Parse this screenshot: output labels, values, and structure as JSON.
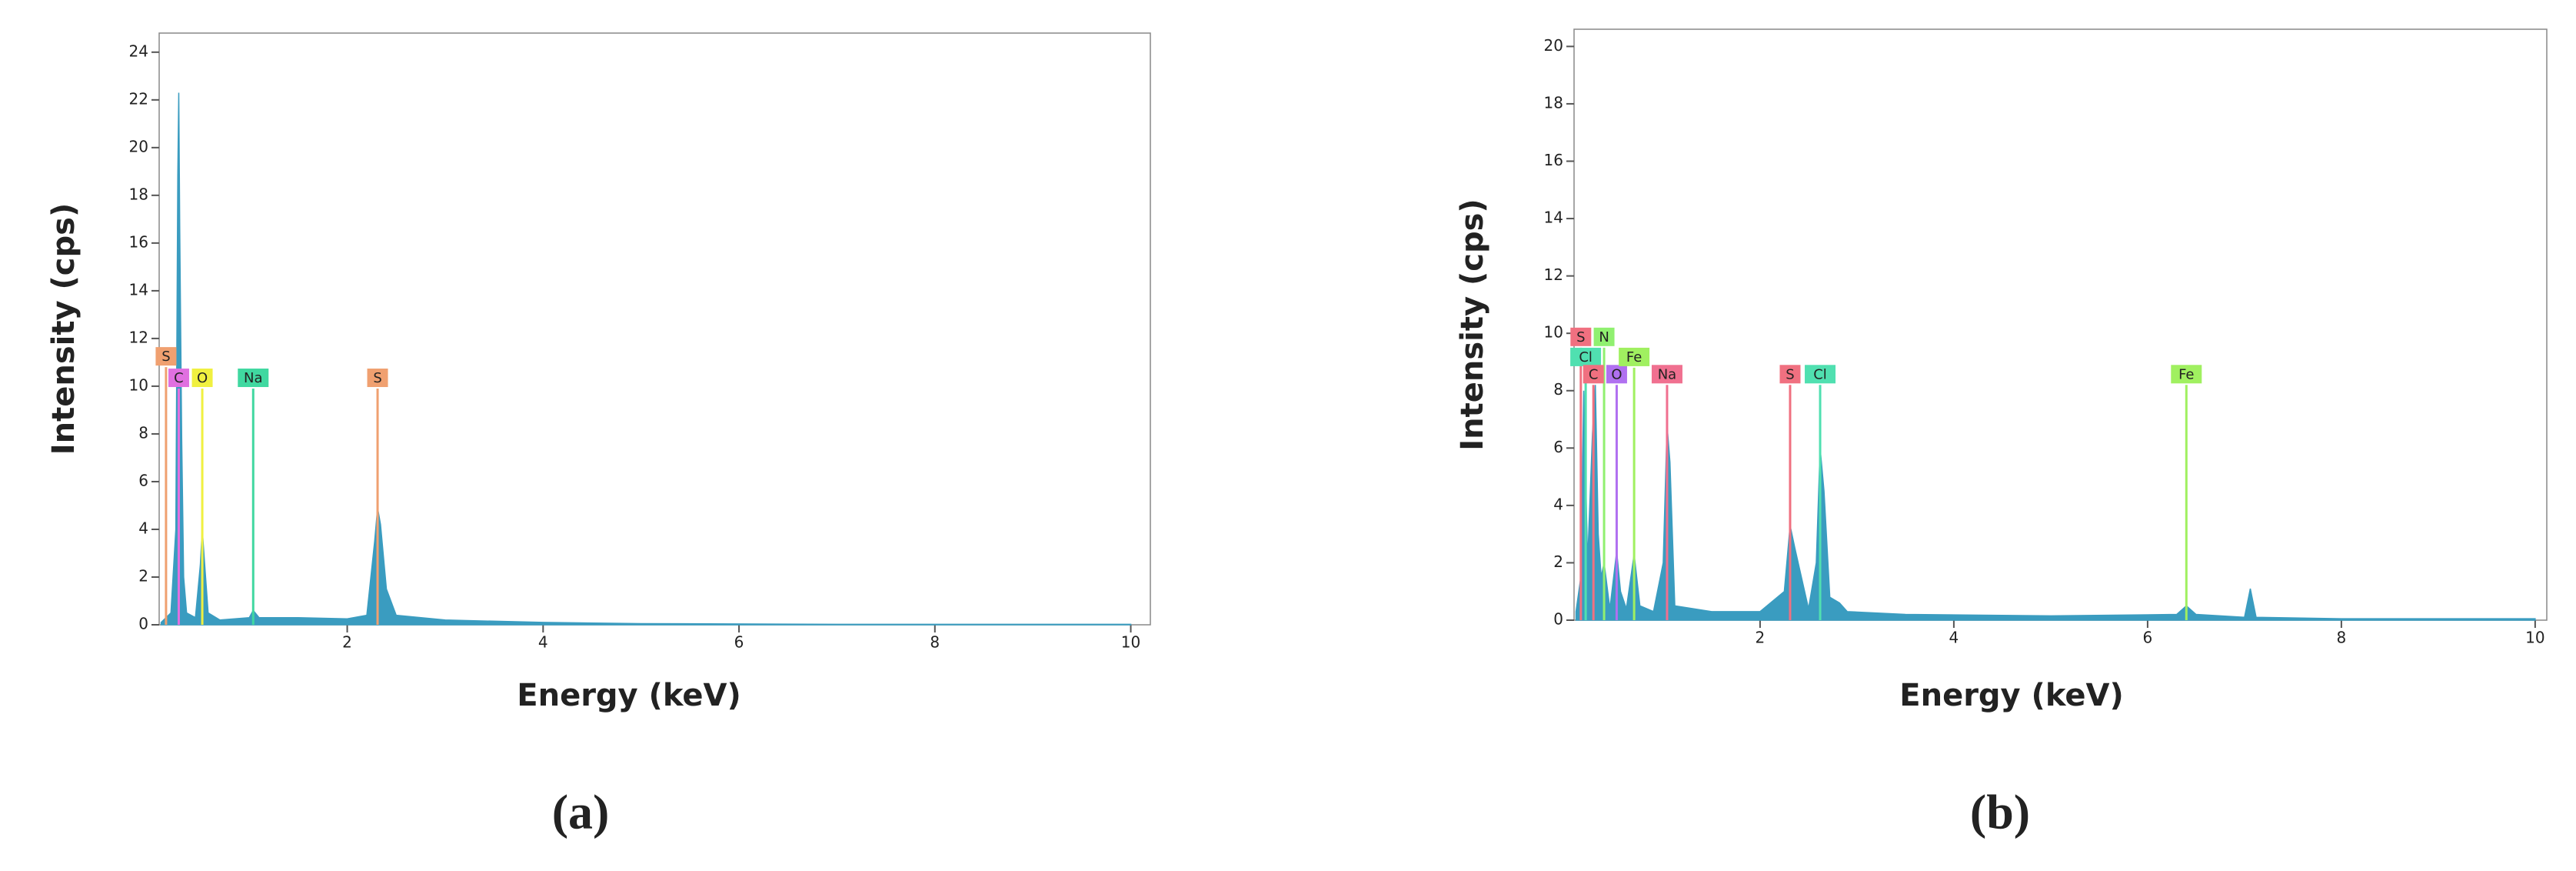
{
  "chart_data": [
    {
      "type": "spectrum",
      "caption": "(a)",
      "x_label": "Energy (keV)",
      "y_label": "Intensity (cps)",
      "color": "#3a9cc0",
      "xlim": [
        0.08,
        10.2
      ],
      "ylim": [
        0,
        24.8
      ],
      "xticks": [
        2,
        4,
        6,
        8,
        10
      ],
      "yticks": [
        0,
        2,
        4,
        6,
        8,
        10,
        12,
        14,
        16,
        18,
        20,
        22,
        24
      ],
      "x": [
        0.1,
        0.2,
        0.25,
        0.27,
        0.28,
        0.29,
        0.31,
        0.33,
        0.36,
        0.45,
        0.5,
        0.52,
        0.54,
        0.58,
        0.7,
        1.0,
        1.04,
        1.1,
        1.5,
        2.0,
        2.2,
        2.28,
        2.31,
        2.34,
        2.4,
        2.5,
        3.0,
        4.0,
        5.0,
        7.0,
        10.0
      ],
      "values": [
        0.1,
        0.5,
        4,
        18.8,
        22.3,
        16.6,
        7.8,
        2,
        0.5,
        0.3,
        2.5,
        4.0,
        2.8,
        0.5,
        0.2,
        0.3,
        0.6,
        0.3,
        0.3,
        0.25,
        0.4,
        3.5,
        4.9,
        4.2,
        1.5,
        0.4,
        0.2,
        0.1,
        0.05,
        0.02,
        0.02
      ],
      "markers": [
        {
          "label": "S",
          "energy": 0.15,
          "height": 10.8,
          "color": "#f0a070"
        },
        {
          "label": "C",
          "energy": 0.28,
          "height": 9.9,
          "color": "#e070e0"
        },
        {
          "label": "O",
          "energy": 0.52,
          "height": 9.9,
          "color": "#f0f040"
        },
        {
          "label": "Na",
          "energy": 1.04,
          "height": 9.9,
          "color": "#40d8a0"
        },
        {
          "label": "S",
          "energy": 2.31,
          "height": 9.9,
          "color": "#f0a070"
        }
      ]
    },
    {
      "type": "spectrum",
      "caption": "(b)",
      "x_label": "Energy (keV)",
      "y_label": "Intensity (cps)",
      "color": "#3a9cc0",
      "xlim": [
        0.08,
        10.12
      ],
      "ylim": [
        0,
        20.6
      ],
      "xticks": [
        2,
        4,
        6,
        8,
        10
      ],
      "yticks": [
        0,
        2,
        4,
        6,
        8,
        10,
        12,
        14,
        16,
        18,
        20
      ],
      "x": [
        0.1,
        0.15,
        0.18,
        0.22,
        0.27,
        0.3,
        0.33,
        0.36,
        0.39,
        0.45,
        0.52,
        0.56,
        0.62,
        0.7,
        0.76,
        0.9,
        1.0,
        1.04,
        1.07,
        1.12,
        1.5,
        2.0,
        2.25,
        2.31,
        2.36,
        2.5,
        2.58,
        2.62,
        2.66,
        2.72,
        2.82,
        2.9,
        3.5,
        5.0,
        6.3,
        6.4,
        6.5,
        7.0,
        7.06,
        7.12,
        8.0,
        10.0
      ],
      "values": [
        0.3,
        1.5,
        8.0,
        2.0,
        6.5,
        8.2,
        3.0,
        1.5,
        2.0,
        0.4,
        2.4,
        1.0,
        0.4,
        2.3,
        0.5,
        0.3,
        2.0,
        6.8,
        5.5,
        0.5,
        0.3,
        0.3,
        1.0,
        3.3,
        2.5,
        0.4,
        2.0,
        6.0,
        4.5,
        0.8,
        0.6,
        0.3,
        0.2,
        0.15,
        0.2,
        0.5,
        0.2,
        0.1,
        1.1,
        0.1,
        0.05,
        0.05
      ],
      "markers": [
        {
          "label": "S",
          "energy": 0.15,
          "height": 9.5,
          "color": "#f07080"
        },
        {
          "label": "Cl",
          "energy": 0.2,
          "height": 8.8,
          "color": "#50e0b0"
        },
        {
          "label": "N",
          "energy": 0.39,
          "height": 9.5,
          "color": "#90f070"
        },
        {
          "label": "C",
          "energy": 0.28,
          "height": 8.2,
          "color": "#f07080"
        },
        {
          "label": "O",
          "energy": 0.52,
          "height": 8.2,
          "color": "#b070f0"
        },
        {
          "label": "Fe",
          "energy": 0.7,
          "height": 8.8,
          "color": "#a0f060"
        },
        {
          "label": "Na",
          "energy": 1.04,
          "height": 8.2,
          "color": "#f07090"
        },
        {
          "label": "S",
          "energy": 2.31,
          "height": 8.2,
          "color": "#f07080"
        },
        {
          "label": "Cl",
          "energy": 2.62,
          "height": 8.2,
          "color": "#50e0b0"
        },
        {
          "label": "Fe",
          "energy": 6.4,
          "height": 8.2,
          "color": "#a0f060"
        }
      ]
    }
  ]
}
